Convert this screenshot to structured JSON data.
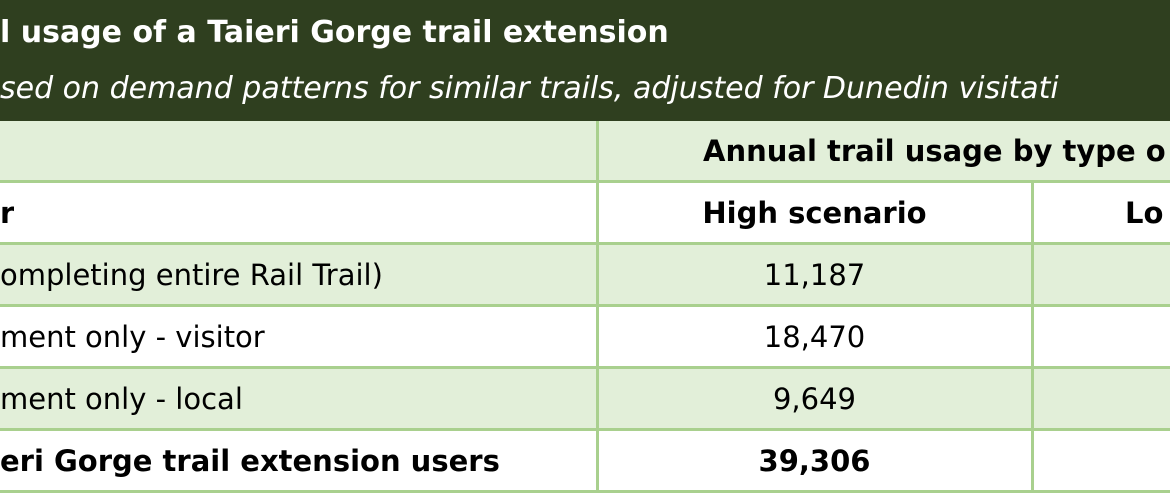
{
  "header": {
    "title": "l usage of a Taieri Gorge trail extension",
    "subtitle": "sed on demand patterns for similar trails, adjusted for Dunedin visitati"
  },
  "table": {
    "group_header": "Annual trail usage by type o",
    "columns": [
      "r",
      "High scenario",
      "Lo"
    ],
    "rows": [
      [
        "ompleting entire Rail Trail)",
        "11,187"
      ],
      [
        "ment only - visitor",
        "18,470"
      ],
      [
        "ment only - local",
        "9,649"
      ],
      [
        "eri Gorge trail extension users",
        "39,306"
      ]
    ]
  }
}
